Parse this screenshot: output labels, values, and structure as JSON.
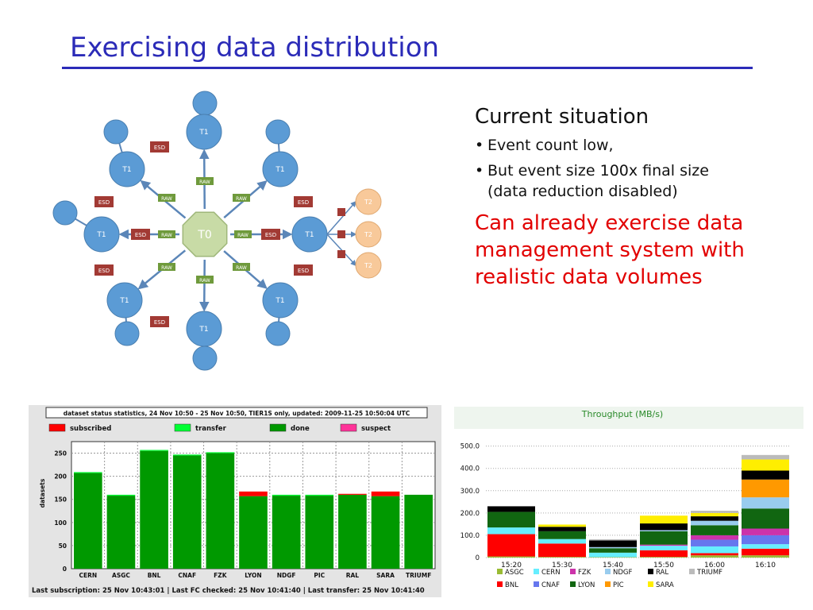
{
  "slide": {
    "title": "Exercising data distribution"
  },
  "diagram": {
    "center_label": "T0",
    "t1_label": "T1",
    "t2_label": "T2",
    "raw_label": "RAW",
    "esd_label": "ESD",
    "colors": {
      "t0": "#c8dba6",
      "t1": "#5b9bd5",
      "t2": "#f8c99a",
      "raw": "#6f9a3c",
      "esd": "#a23a34",
      "arrow": "#5b86b8"
    }
  },
  "bullets": {
    "heading": "Current situation",
    "items": [
      "Event count low,",
      "But event size 100x final size",
      "(data reduction disabled)"
    ],
    "red_text": [
      "Can already exercise data",
      "management system with",
      "realistic data volumes"
    ]
  },
  "left_chart": {
    "header": "dataset status statistics, 24 Nov 10:50 - 25 Nov 10:50, TIER1S only, updated: 2009-11-25 10:50:04 UTC",
    "footer": "Last subscription: 25 Nov 10:43:01  |  Last FC checked: 25 Nov 10:41:40  |  Last transfer: 25 Nov 10:41:40",
    "ylabel": "datasets"
  },
  "chart_data": [
    {
      "type": "bar",
      "stacked": true,
      "categories": [
        "CERN",
        "ASGC",
        "BNL",
        "CNAF",
        "FZK",
        "LYON",
        "NDGF",
        "PIC",
        "RAL",
        "SARA",
        "TRIUMF"
      ],
      "series": [
        {
          "name": "done",
          "color": "#009900",
          "values": [
            207,
            158,
            255,
            245,
            250,
            157,
            158,
            158,
            160,
            157,
            160
          ]
        },
        {
          "name": "transfer",
          "color": "#00ff33",
          "values": [
            2,
            2,
            2,
            2,
            2,
            0,
            2,
            2,
            0,
            0,
            0
          ]
        },
        {
          "name": "subscribed",
          "color": "#ff0000",
          "values": [
            0,
            0,
            0,
            0,
            0,
            10,
            0,
            0,
            2,
            10,
            0
          ]
        },
        {
          "name": "suspect",
          "color": "#ff3399",
          "values": [
            0,
            0,
            0,
            0,
            0,
            0,
            0,
            0,
            0,
            0,
            0
          ]
        }
      ],
      "yticks": [
        0,
        50,
        100,
        150,
        200,
        250
      ],
      "ylim": [
        0,
        275
      ],
      "ylabel": "datasets",
      "legend": "top",
      "grid": true
    },
    {
      "type": "bar",
      "stacked": true,
      "title": "Throughput (MB/s)",
      "categories": [
        "15:20",
        "15:30",
        "15:40",
        "15:50",
        "16:00",
        "16:10"
      ],
      "yticks": [
        "0",
        "100.0",
        "200.0",
        "300.0",
        "400.0",
        "500.0"
      ],
      "ylim": [
        0,
        520
      ],
      "series": [
        {
          "name": "ASGC",
          "color": "#99bb33",
          "values": [
            5,
            3,
            2,
            3,
            10,
            10
          ]
        },
        {
          "name": "BNL",
          "color": "#ff0000",
          "values": [
            100,
            60,
            0,
            30,
            10,
            30
          ]
        },
        {
          "name": "CERN",
          "color": "#66eeff",
          "values": [
            30,
            20,
            20,
            20,
            30,
            20
          ]
        },
        {
          "name": "CNAF",
          "color": "#6677ee",
          "values": [
            0,
            0,
            0,
            0,
            30,
            40
          ]
        },
        {
          "name": "FZK",
          "color": "#cc33aa",
          "values": [
            0,
            0,
            0,
            5,
            20,
            30
          ]
        },
        {
          "name": "LYON",
          "color": "#116611",
          "values": [
            70,
            35,
            20,
            60,
            45,
            90
          ]
        },
        {
          "name": "NDGF",
          "color": "#99ccee",
          "values": [
            0,
            0,
            5,
            5,
            20,
            50
          ]
        },
        {
          "name": "PIC",
          "color": "#ff9900",
          "values": [
            0,
            0,
            0,
            0,
            0,
            80
          ]
        },
        {
          "name": "RAL",
          "color": "#000000",
          "values": [
            25,
            20,
            30,
            30,
            20,
            40
          ]
        },
        {
          "name": "SARA",
          "color": "#ffee00",
          "values": [
            0,
            10,
            0,
            35,
            15,
            50
          ]
        },
        {
          "name": "TRIUMF",
          "color": "#bbbbbb",
          "values": [
            0,
            0,
            5,
            0,
            10,
            20
          ]
        }
      ],
      "legend": "bottom"
    }
  ]
}
